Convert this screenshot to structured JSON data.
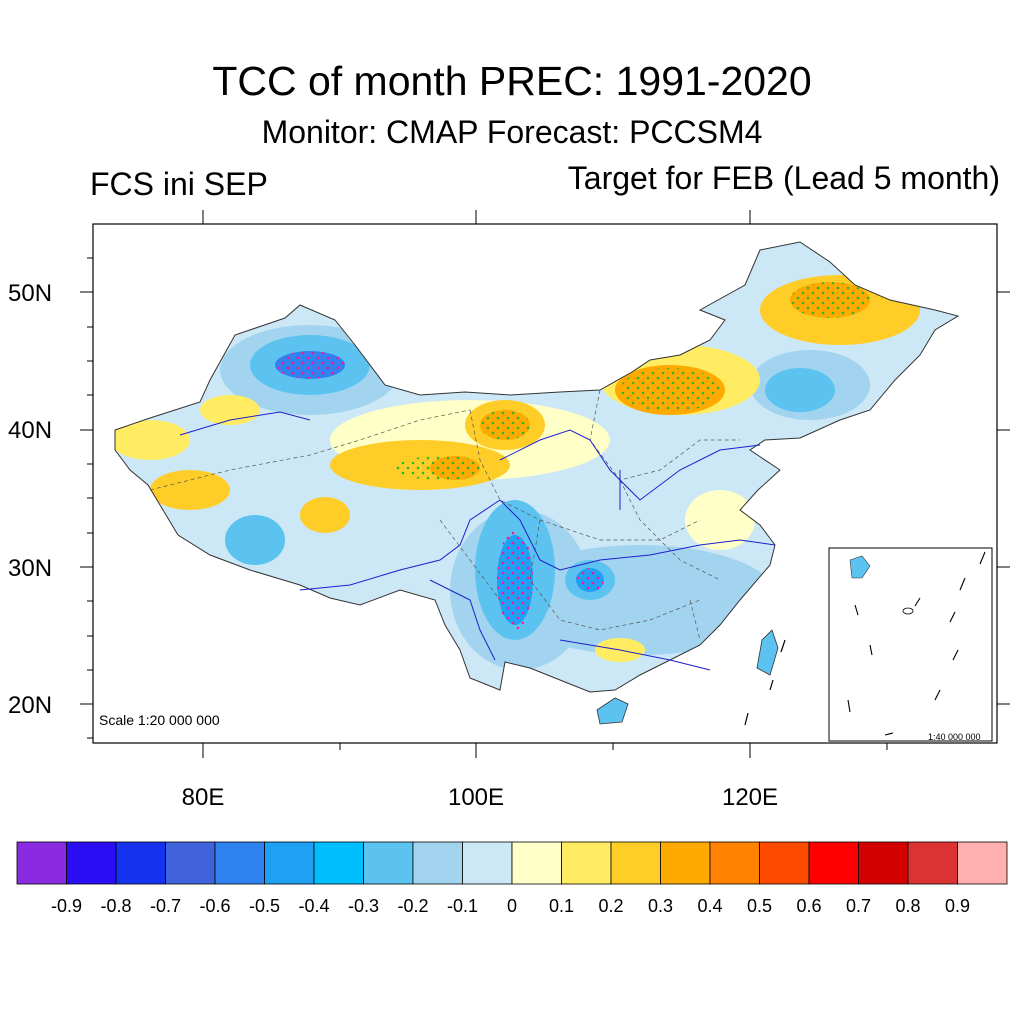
{
  "title": "TCC of month PREC: 1991-2020",
  "subtitle": "Monitor: CMAP   Forecast: PCCSM4",
  "left_subtitle": "FCS ini SEP",
  "right_subtitle": "Target for FEB (Lead 5 month)",
  "scale_main": "Scale 1:20 000 000",
  "scale_inset": "1:40 000 000",
  "axes": {
    "y_ticks": [
      "50N",
      "40N",
      "30N",
      "20N"
    ],
    "x_ticks": [
      "80E",
      "100E",
      "120E"
    ],
    "lon_range": [
      72,
      138
    ],
    "lat_range": [
      17,
      55
    ]
  },
  "colorbar": {
    "colors": [
      "#8a2be2",
      "#2a0cf5",
      "#1432f0",
      "#4063dc",
      "#2f82f0",
      "#1ea0f5",
      "#00bfff",
      "#5cc3f0",
      "#a2d4f0",
      "#cce8f6",
      "#ffffc8",
      "#ffec62",
      "#ffcd28",
      "#ffaa00",
      "#ff8200",
      "#ff4b00",
      "#ff0000",
      "#d20000",
      "#dc3232",
      "#ffafaf"
    ],
    "labels": [
      "-0.9",
      "-0.8",
      "-0.7",
      "-0.6",
      "-0.5",
      "-0.4",
      "-0.3",
      "-0.2",
      "-0.1",
      "0",
      "0.1",
      "0.2",
      "0.3",
      "0.4",
      "0.5",
      "0.6",
      "0.7",
      "0.8",
      "0.9"
    ]
  },
  "legend_colors": {
    "background_land": "#cce8f6",
    "rivers": "#1f1fd0",
    "significance_dots_positive": "#2db32d",
    "significance_dots_negative": "#ff1493"
  }
}
